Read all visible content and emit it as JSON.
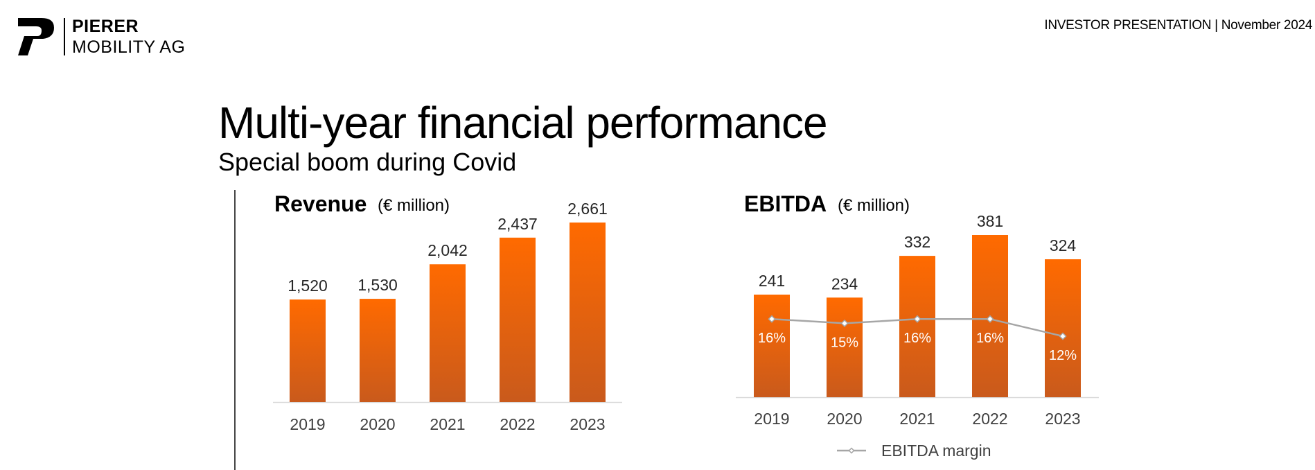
{
  "header": {
    "brand_line1": "PIERER",
    "brand_line2": "MOBILITY AG",
    "right_text": "INVESTOR PRESENTATION | November 2024"
  },
  "page": {
    "title": "Multi-year financial performance",
    "subtitle": "Special boom during Covid"
  },
  "colors": {
    "bar_top": "#ff6a00",
    "bar_bottom": "#c95a1c",
    "axis": "#d9d9d9",
    "text": "#262626",
    "tick": "#404040",
    "margin_line": "#a6a6a6"
  },
  "chart_data": [
    {
      "type": "bar",
      "title": "Revenue",
      "unit": "(€ million)",
      "categories": [
        "2019",
        "2020",
        "2021",
        "2022",
        "2023"
      ],
      "values": [
        1520,
        1530,
        2042,
        2437,
        2661
      ],
      "value_labels": [
        "1,520",
        "1,530",
        "2,042",
        "2,437",
        "2,661"
      ],
      "xlabel": "",
      "ylabel": "",
      "ylim": [
        0,
        2661
      ],
      "grid": false
    },
    {
      "type": "bar",
      "title": "EBITDA",
      "unit": "(€ million)",
      "categories": [
        "2019",
        "2020",
        "2021",
        "2022",
        "2023"
      ],
      "values": [
        241,
        234,
        332,
        381,
        324
      ],
      "value_labels": [
        "241",
        "234",
        "332",
        "381",
        "324"
      ],
      "xlabel": "",
      "ylabel": "",
      "ylim": [
        0,
        381
      ],
      "grid": false,
      "line_series": {
        "name": "EBITDA margin",
        "values": [
          16,
          15,
          16,
          16,
          12
        ],
        "labels": [
          "16%",
          "15%",
          "16%",
          "16%",
          "12%"
        ]
      },
      "legend_placement": "bottom"
    }
  ]
}
